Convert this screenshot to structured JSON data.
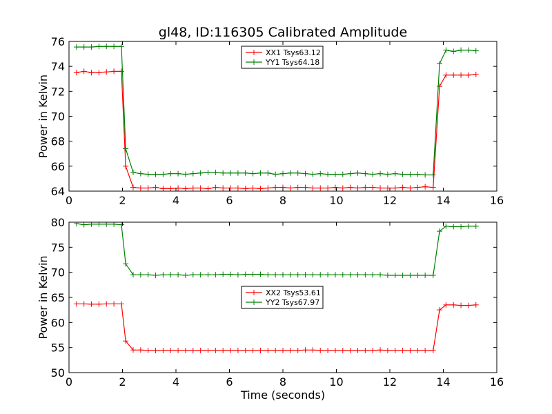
{
  "chart_data": {
    "title": "gl48, ID:116305 Calibrated Amplitude",
    "xlabel": "Time (seconds)",
    "x": [
      0.28,
      0.56,
      0.84,
      1.12,
      1.4,
      1.68,
      1.96,
      2.12,
      2.4,
      2.68,
      2.96,
      3.24,
      3.52,
      3.8,
      4.08,
      4.36,
      4.64,
      4.92,
      5.2,
      5.48,
      5.76,
      6.04,
      6.32,
      6.6,
      6.88,
      7.16,
      7.44,
      7.72,
      8.0,
      8.28,
      8.56,
      8.84,
      9.12,
      9.4,
      9.68,
      9.96,
      10.24,
      10.52,
      10.8,
      11.08,
      11.36,
      11.64,
      11.92,
      12.2,
      12.48,
      12.76,
      13.04,
      13.32,
      13.62,
      13.86,
      14.1,
      14.38,
      14.66,
      14.94,
      15.22
    ],
    "charts": [
      {
        "type": "line",
        "ylabel": "Power in Kelvin",
        "xlim": [
          0,
          16
        ],
        "ylim": [
          64,
          76
        ],
        "xticks": [
          "0",
          "2",
          "4",
          "6",
          "8",
          "10",
          "12",
          "14",
          "16"
        ],
        "yticks": [
          "64",
          "66",
          "68",
          "70",
          "72",
          "74",
          "76"
        ],
        "xtick_values": [
          0,
          2,
          4,
          6,
          8,
          10,
          12,
          14,
          16
        ],
        "ytick_values": [
          64,
          66,
          68,
          70,
          72,
          74,
          76
        ],
        "legend_position": "top-center",
        "series": [
          {
            "name": "XX1 Tsys63.12",
            "color": "#ff0000",
            "values": [
              73.5,
              73.6,
              73.5,
              73.5,
              73.55,
              73.6,
              73.6,
              66.0,
              64.3,
              64.25,
              64.25,
              64.3,
              64.2,
              64.2,
              64.25,
              64.2,
              64.25,
              64.25,
              64.2,
              64.3,
              64.25,
              64.25,
              64.25,
              64.2,
              64.25,
              64.2,
              64.25,
              64.3,
              64.3,
              64.25,
              64.3,
              64.3,
              64.25,
              64.25,
              64.25,
              64.3,
              64.25,
              64.3,
              64.25,
              64.3,
              64.3,
              64.25,
              64.25,
              64.25,
              64.3,
              64.25,
              64.3,
              64.35,
              64.3,
              72.4,
              73.3,
              73.3,
              73.3,
              73.3,
              73.35
            ]
          },
          {
            "name": "YY1 Tsys64.18",
            "color": "#008000",
            "values": [
              75.55,
              75.55,
              75.55,
              75.6,
              75.6,
              75.6,
              75.6,
              67.4,
              65.5,
              65.4,
              65.35,
              65.35,
              65.35,
              65.4,
              65.4,
              65.35,
              65.4,
              65.45,
              65.5,
              65.5,
              65.45,
              65.45,
              65.45,
              65.45,
              65.4,
              65.45,
              65.45,
              65.35,
              65.4,
              65.45,
              65.45,
              65.4,
              65.35,
              65.4,
              65.35,
              65.35,
              65.35,
              65.4,
              65.45,
              65.4,
              65.35,
              65.4,
              65.35,
              65.4,
              65.35,
              65.35,
              65.35,
              65.3,
              65.3,
              74.2,
              75.3,
              75.2,
              75.3,
              75.3,
              75.25
            ]
          }
        ]
      },
      {
        "type": "line",
        "ylabel": "Power in Kelvin",
        "xlim": [
          0,
          16
        ],
        "ylim": [
          50,
          80
        ],
        "xticks": [
          "0",
          "2",
          "4",
          "6",
          "8",
          "10",
          "12",
          "14",
          "16"
        ],
        "yticks": [
          "50",
          "55",
          "60",
          "65",
          "70",
          "75",
          "80"
        ],
        "xtick_values": [
          0,
          2,
          4,
          6,
          8,
          10,
          12,
          14,
          16
        ],
        "ytick_values": [
          50,
          55,
          60,
          65,
          70,
          75,
          80
        ],
        "legend_position": "center",
        "series": [
          {
            "name": "XX2 Tsys53.61",
            "color": "#ff0000",
            "values": [
              63.7,
              63.7,
              63.65,
              63.65,
              63.7,
              63.7,
              63.7,
              56.3,
              54.5,
              54.5,
              54.4,
              54.4,
              54.4,
              54.4,
              54.4,
              54.4,
              54.4,
              54.4,
              54.4,
              54.4,
              54.4,
              54.4,
              54.4,
              54.4,
              54.4,
              54.4,
              54.4,
              54.4,
              54.4,
              54.4,
              54.4,
              54.5,
              54.5,
              54.4,
              54.4,
              54.4,
              54.4,
              54.4,
              54.4,
              54.4,
              54.4,
              54.5,
              54.4,
              54.4,
              54.4,
              54.4,
              54.4,
              54.4,
              54.4,
              62.5,
              63.5,
              63.5,
              63.4,
              63.4,
              63.5
            ]
          },
          {
            "name": "YY2 Tsys67.97",
            "color": "#008000",
            "values": [
              79.7,
              79.5,
              79.6,
              79.6,
              79.6,
              79.6,
              79.5,
              71.7,
              69.5,
              69.5,
              69.5,
              69.4,
              69.5,
              69.5,
              69.5,
              69.4,
              69.5,
              69.5,
              69.5,
              69.5,
              69.6,
              69.6,
              69.5,
              69.6,
              69.6,
              69.6,
              69.5,
              69.5,
              69.5,
              69.5,
              69.5,
              69.5,
              69.5,
              69.5,
              69.5,
              69.5,
              69.5,
              69.5,
              69.5,
              69.5,
              69.5,
              69.5,
              69.4,
              69.4,
              69.4,
              69.4,
              69.4,
              69.4,
              69.4,
              78.2,
              79.2,
              79.1,
              79.1,
              79.2,
              79.2
            ]
          }
        ]
      }
    ]
  }
}
